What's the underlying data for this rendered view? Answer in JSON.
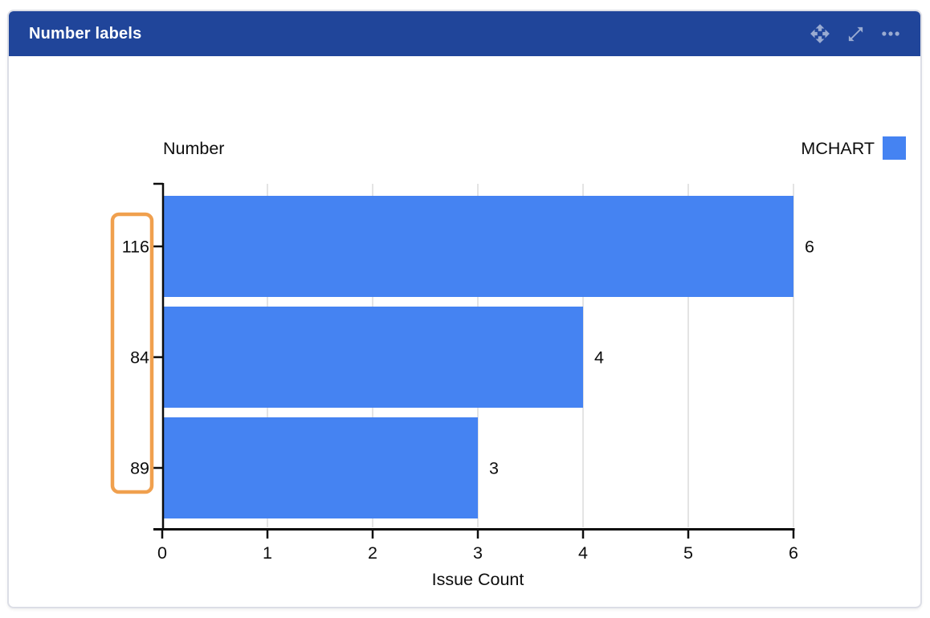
{
  "header": {
    "title": "Number labels",
    "icons": [
      {
        "name": "move-icon"
      },
      {
        "name": "expand-icon"
      },
      {
        "name": "more-icon"
      }
    ]
  },
  "colors": {
    "header_bg": "#20459a",
    "header_icon": "rgba(255,255,255,0.55)",
    "bar": "#4583f2",
    "grid": "#e4e4e4",
    "axis": "#0d0d0d",
    "annotation": "#f0a04e",
    "card_border": "#dcdee6",
    "text": "#0d0d0d"
  },
  "chart_data": {
    "type": "bar",
    "orientation": "horizontal",
    "title": "",
    "y_axis_title": "Number",
    "xlabel": "Issue Count",
    "categories": [
      "116",
      "84",
      "89"
    ],
    "values": [
      6,
      4,
      3
    ],
    "data_labels": [
      "6",
      "4",
      "3"
    ],
    "series": [
      {
        "name": "MCHART",
        "values": [
          6,
          4,
          3
        ]
      }
    ],
    "legend_label": "MCHART",
    "legend_position": "top-right",
    "x_ticks": [
      0,
      1,
      2,
      3,
      4,
      5,
      6
    ],
    "xlim": [
      0,
      6
    ],
    "grid": true,
    "annotation": "orange rounded rectangle highlighting the y-axis category labels 116, 84, 89"
  }
}
